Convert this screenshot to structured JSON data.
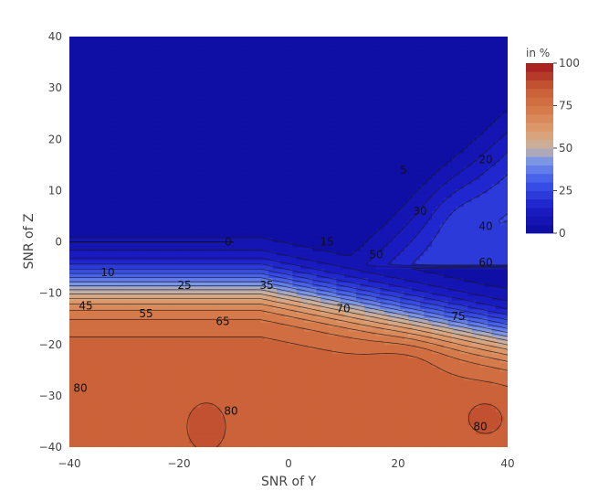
{
  "chart_data": {
    "type": "contour",
    "title": "",
    "xlabel": "SNR of Y",
    "ylabel": "SNR of Z",
    "xlim": [
      -40,
      40
    ],
    "ylim": [
      -40,
      40
    ],
    "x_ticks": [
      "−40",
      "−20",
      "0",
      "20",
      "40"
    ],
    "y_ticks": [
      "−40",
      "−30",
      "−20",
      "−10",
      "0",
      "10",
      "20",
      "30",
      "40"
    ],
    "colorbar": {
      "title": "in %",
      "ticks": [
        "0",
        "25",
        "50",
        "75",
        "100"
      ],
      "range": [
        0,
        100
      ],
      "step": 5
    },
    "contour_labels": [
      {
        "text": "0",
        "x": -11,
        "y": 0
      },
      {
        "text": "5",
        "x": 21,
        "y": 14
      },
      {
        "text": "10",
        "x": -33,
        "y": -6
      },
      {
        "text": "15",
        "x": 7,
        "y": 0
      },
      {
        "text": "20",
        "x": 36,
        "y": 16
      },
      {
        "text": "25",
        "x": -19,
        "y": -8.5
      },
      {
        "text": "30",
        "x": 24,
        "y": 6
      },
      {
        "text": "35",
        "x": -4,
        "y": -8.5
      },
      {
        "text": "40",
        "x": 36,
        "y": 3
      },
      {
        "text": "45",
        "x": -37,
        "y": -12.5
      },
      {
        "text": "50",
        "x": 16,
        "y": -2.5
      },
      {
        "text": "55",
        "x": -26,
        "y": -14
      },
      {
        "text": "60",
        "x": 36,
        "y": -4
      },
      {
        "text": "65",
        "x": -12,
        "y": -15.5
      },
      {
        "text": "70",
        "x": 10,
        "y": -13
      },
      {
        "text": "75",
        "x": 31,
        "y": -14.5
      },
      {
        "text": "80",
        "x": -38,
        "y": -28.5
      },
      {
        "text": "80",
        "x": -10.5,
        "y": -33
      },
      {
        "text": "80",
        "x": 35,
        "y": -36
      }
    ],
    "colors": {
      "low": "#0c0c9e",
      "mid": "#c6b3a5",
      "high": "#a4171f",
      "line": "#1a1a1a",
      "grid": "#eeeeee"
    }
  }
}
